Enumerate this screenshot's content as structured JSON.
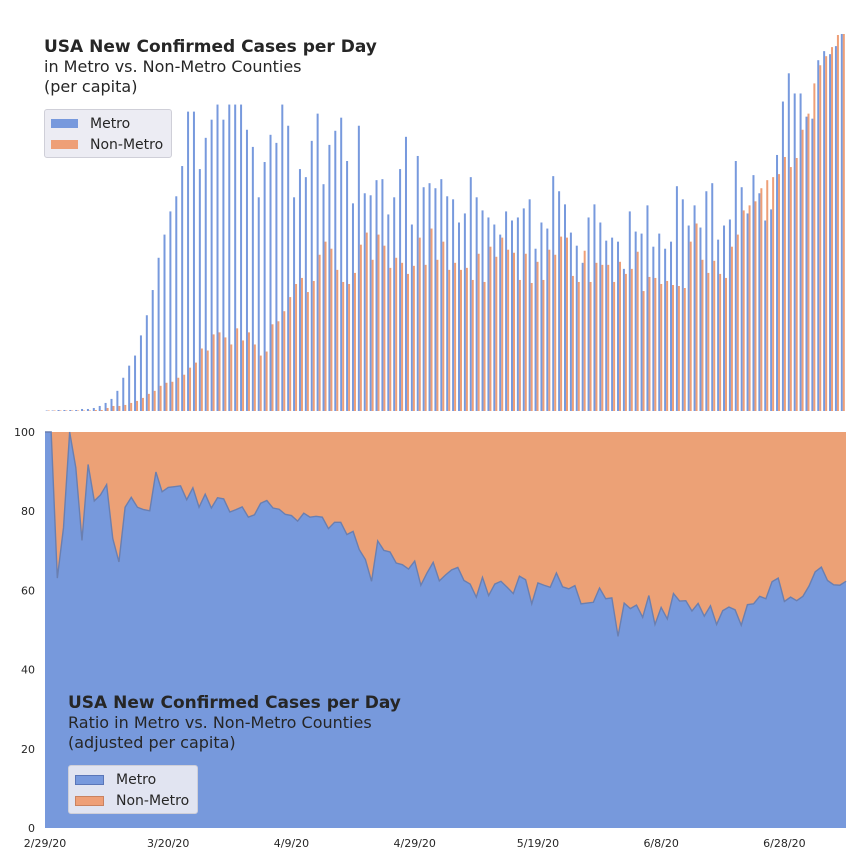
{
  "top_title": {
    "line1": "USA New Confirmed Cases per Day",
    "line2": "in Metro vs. Non-Metro Counties",
    "line3": "(per capita)"
  },
  "bottom_title": {
    "line1": "USA New Confirmed Cases per Day",
    "line2": "Ratio in Metro vs. Non-Metro Counties",
    "line3": "(adjusted per capita)"
  },
  "colors": {
    "metro": "#7799dd",
    "nonmetro": "#ee9f77",
    "nonmetro_area": "#eca176",
    "metro_area": "#7799dc"
  },
  "chart_data": [
    {
      "type": "bar",
      "title": "USA New Confirmed Cases per Day",
      "subtitle": "in Metro vs. Non-Metro Counties (per capita)",
      "y_axis": "hidden",
      "legend": "upper-left",
      "x": "daily, 2/29/20 – 6/30/20",
      "series": [
        {
          "name": "Metro",
          "values": [
            0,
            0,
            1,
            1,
            1,
            1,
            2,
            2,
            3,
            5,
            8,
            12,
            20,
            33,
            45,
            55,
            75,
            95,
            120,
            152,
            175,
            198,
            213,
            243,
            297,
            297,
            240,
            271,
            289,
            304,
            289,
            304,
            304,
            304,
            279,
            262,
            212,
            247,
            274,
            266,
            304,
            283,
            212,
            240,
            232,
            268,
            295,
            225,
            264,
            278,
            291,
            248,
            206,
            283,
            216,
            214,
            229,
            230,
            195,
            212,
            240,
            272,
            185,
            253,
            222,
            226,
            221,
            230,
            213,
            210,
            187,
            196,
            232,
            212,
            199,
            192,
            185,
            175,
            198,
            189,
            192,
            201,
            210,
            161,
            187,
            181,
            233,
            218,
            205,
            177,
            164,
            147,
            192,
            205,
            187,
            169,
            172,
            168,
            141,
            198,
            178,
            176,
            204,
            163,
            176,
            161,
            168,
            223,
            210,
            184,
            204,
            182,
            218,
            226,
            170,
            184,
            190,
            248,
            222,
            196,
            234,
            216,
            189,
            200,
            254,
            307,
            335,
            315,
            315,
            292,
            290,
            348,
            357,
            354,
            362,
            374
          ]
        },
        {
          "name": "Non-Metro",
          "values": [
            0,
            0,
            0,
            0,
            0,
            0,
            0,
            0,
            1,
            1,
            3,
            5,
            5,
            6,
            8,
            10,
            13,
            17,
            20,
            25,
            28,
            29,
            33,
            36,
            43,
            48,
            62,
            60,
            76,
            78,
            73,
            66,
            82,
            70,
            78,
            66,
            55,
            59,
            86,
            89,
            99,
            113,
            126,
            132,
            118,
            129,
            155,
            168,
            161,
            140,
            128,
            126,
            137,
            165,
            177,
            150,
            175,
            164,
            142,
            152,
            147,
            136,
            144,
            172,
            145,
            181,
            150,
            168,
            140,
            147,
            140,
            142,
            130,
            156,
            128,
            163,
            153,
            172,
            160,
            157,
            130,
            156,
            127,
            148,
            130,
            160,
            155,
            173,
            172,
            134,
            128,
            159,
            128,
            147,
            145,
            145,
            128,
            148,
            136,
            141,
            158,
            119,
            133,
            132,
            126,
            129,
            125,
            124,
            122,
            168,
            186,
            150,
            137,
            149,
            136,
            132,
            163,
            175,
            199,
            204,
            208,
            221,
            229,
            232,
            235,
            252,
            242,
            251,
            279,
            295,
            325,
            343,
            352,
            361,
            373,
            374
          ]
        }
      ]
    },
    {
      "type": "area",
      "title": "USA New Confirmed Cases per Day",
      "subtitle": "Ratio in Metro vs. Non-Metro Counties (adjusted per capita)",
      "x_tick_labels": [
        "2/29/20",
        "3/20/20",
        "4/9/20",
        "4/29/20",
        "5/19/20",
        "6/8/20",
        "6/28/20"
      ],
      "y_ticks": [
        0,
        20,
        40,
        60,
        80,
        100
      ],
      "ylim": [
        0,
        100
      ],
      "legend": "lower-left",
      "stacked": true,
      "series": [
        {
          "name": "Metro",
          "values": [
            100,
            100,
            63.1,
            75.8,
            100,
            91,
            72.6,
            91.8,
            82.6,
            84.1,
            86.7,
            73.1,
            67.2,
            81,
            83.5,
            81,
            80.4,
            80.1,
            89.9,
            84.9,
            86,
            86.2,
            86.4,
            82.9,
            85.9,
            81,
            84.3,
            80.8,
            83.4,
            83.1,
            79.8,
            80.4,
            81.1,
            78.5,
            79.1,
            82,
            82.7,
            80.8,
            80.5,
            79.2,
            78.9,
            77.5,
            79.5,
            78.5,
            78.7,
            78.5,
            75.6,
            77.2,
            77.2,
            74.1,
            74.9,
            70.3,
            67.8,
            62.3,
            72.5,
            70.1,
            69.7,
            66.9,
            66.5,
            65.4,
            67.4,
            61.3,
            64.4,
            67.1,
            62.4,
            63.9,
            65.2,
            65.8,
            62.5,
            61.6,
            58.3,
            63.3,
            58.7,
            61.6,
            62.3,
            60.8,
            59.2,
            63.6,
            62.7,
            56.6,
            61.9,
            61.3,
            60.8,
            64.4,
            60.9,
            60.4,
            61.2,
            56.6,
            56.8,
            57,
            60.6,
            57.9,
            58.1,
            48.4,
            56.8,
            55.4,
            56.3,
            53.2,
            58.7,
            51.4,
            55.7,
            52.8,
            59.2,
            57.3,
            57.4,
            54.8,
            56.7,
            53.5,
            56.1,
            51.4,
            54.9,
            55.8,
            55.1,
            51.2,
            56.4,
            56.6,
            58.5,
            57.9,
            62.2,
            63.1,
            57.2,
            58.3,
            57.4,
            58.5,
            61.1,
            64.7,
            65.9,
            62.5,
            61.4,
            61.3,
            62.3
          ]
        },
        {
          "name": "Non-Metro",
          "values": "100 minus Metro (fills remainder to 100)"
        }
      ]
    }
  ],
  "legend_labels": {
    "metro": "Metro",
    "nonmetro": "Non-Metro"
  }
}
